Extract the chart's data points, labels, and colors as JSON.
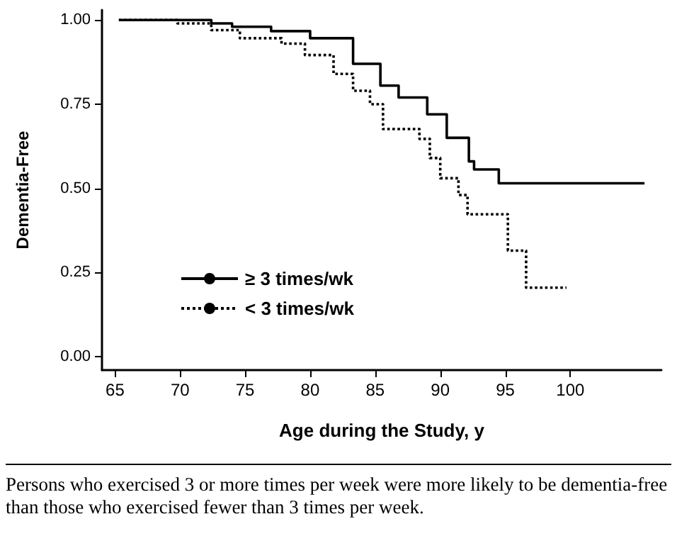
{
  "chart_data": {
    "type": "step",
    "xlabel": "Age during the Study, y",
    "ylabel": "Dementia-Free",
    "xlim": [
      64,
      107
    ],
    "xticks": [
      65,
      70,
      75,
      80,
      85,
      90,
      95,
      100
    ],
    "ylim": [
      -0.04,
      1.03
    ],
    "yticks": [
      {
        "value": 0,
        "label": "0.00"
      },
      {
        "value": 0.25,
        "label": "0.25"
      },
      {
        "value": 0.5,
        "label": "0.50"
      },
      {
        "value": 0.75,
        "label": "0.75"
      },
      {
        "value": 1,
        "label": "1.00"
      }
    ],
    "grid": false,
    "legend": "bottom left",
    "marker": "none",
    "series": [
      {
        "name": "≥ 3 times/wk",
        "color": "#000000",
        "line_style": "solid",
        "x": [
          65.3,
          72.4,
          74,
          77,
          80,
          83.3,
          85.4,
          86.8,
          89,
          90.5,
          92.2,
          92.6,
          94.5,
          105.7
        ],
        "values": [
          1,
          0.99,
          0.98,
          0.967,
          0.946,
          0.87,
          0.805,
          0.77,
          0.72,
          0.65,
          0.58,
          0.556,
          0.515,
          0.515
        ]
      },
      {
        "name": "< 3 times/wk",
        "color": "#000000",
        "line_style": "dotted",
        "x": [
          65.3,
          69.8,
          72.4,
          74.6,
          77.8,
          79.6,
          81.8,
          83.3,
          84.6,
          85.6,
          87.8,
          88.4,
          89.2,
          90,
          91.4,
          92.1,
          95.2,
          96.6,
          99.7
        ],
        "values": [
          1,
          0.99,
          0.97,
          0.946,
          0.93,
          0.896,
          0.84,
          0.79,
          0.75,
          0.676,
          0.676,
          0.647,
          0.59,
          0.53,
          0.48,
          0.423,
          0.315,
          0.205,
          0.205
        ]
      }
    ],
    "annotations": [
      "Persons who exercised 3 or more times per week were more likely to be dementia-free than those who exercised fewer than 3 times per week."
    ]
  }
}
